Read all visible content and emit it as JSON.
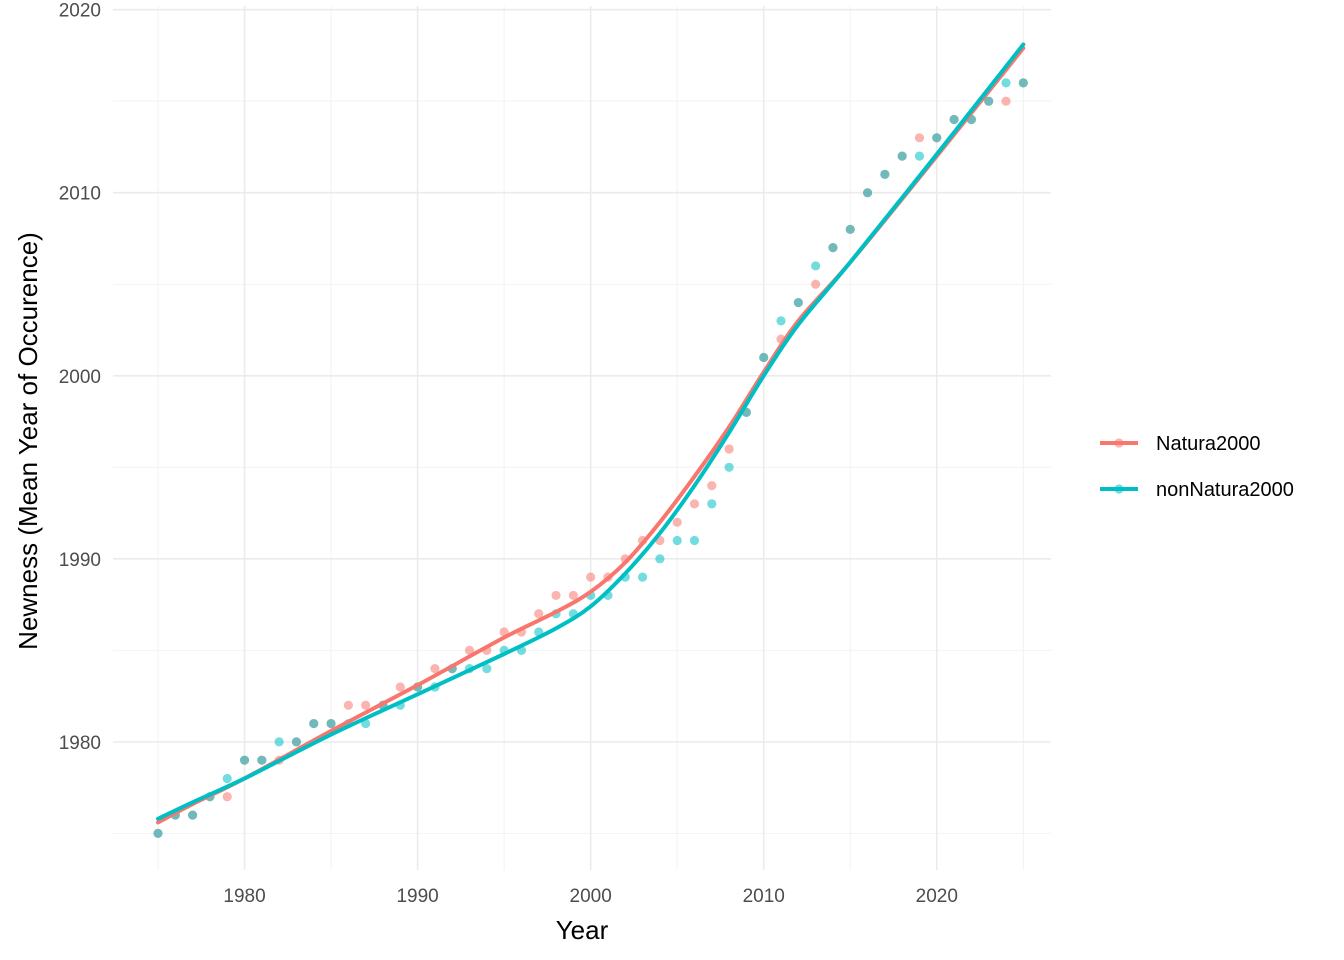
{
  "chart_data": {
    "type": "scatter",
    "xlabel": "Year",
    "ylabel": "Newness (Mean Year of Occurence)",
    "xlim": [
      1972.4,
      2026.6
    ],
    "ylim": [
      1973.0,
      2020.2
    ],
    "x_ticks": [
      1980,
      1990,
      2000,
      2010,
      2020
    ],
    "y_ticks": [
      1980,
      1990,
      2000,
      2010,
      2020
    ],
    "grid": true,
    "legend_position": "right",
    "series": [
      {
        "name": "Natura2000",
        "color": "#F8766D",
        "points": [
          [
            1975,
            1975
          ],
          [
            1976,
            1976
          ],
          [
            1977,
            1976
          ],
          [
            1978,
            1977
          ],
          [
            1979,
            1977
          ],
          [
            1980,
            1979
          ],
          [
            1981,
            1979
          ],
          [
            1982,
            1979
          ],
          [
            1983,
            1980
          ],
          [
            1984,
            1981
          ],
          [
            1985,
            1981
          ],
          [
            1986,
            1982
          ],
          [
            1987,
            1982
          ],
          [
            1988,
            1982
          ],
          [
            1989,
            1983
          ],
          [
            1990,
            1983
          ],
          [
            1991,
            1984
          ],
          [
            1992,
            1984
          ],
          [
            1993,
            1985
          ],
          [
            1994,
            1985
          ],
          [
            1995,
            1986
          ],
          [
            1996,
            1986
          ],
          [
            1997,
            1987
          ],
          [
            1998,
            1988
          ],
          [
            1999,
            1988
          ],
          [
            2000,
            1989
          ],
          [
            2001,
            1989
          ],
          [
            2002,
            1990
          ],
          [
            2003,
            1991
          ],
          [
            2004,
            1991
          ],
          [
            2005,
            1992
          ],
          [
            2006,
            1993
          ],
          [
            2007,
            1994
          ],
          [
            2008,
            1996
          ],
          [
            2009,
            1998
          ],
          [
            2010,
            2001
          ],
          [
            2011,
            2002
          ],
          [
            2012,
            2004
          ],
          [
            2013,
            2005
          ],
          [
            2014,
            2007
          ],
          [
            2015,
            2008
          ],
          [
            2016,
            2010
          ],
          [
            2017,
            2011
          ],
          [
            2018,
            2012
          ],
          [
            2019,
            2013
          ],
          [
            2020,
            2013
          ],
          [
            2021,
            2014
          ],
          [
            2022,
            2014
          ],
          [
            2023,
            2015
          ],
          [
            2024,
            2015
          ],
          [
            2025,
            2016
          ]
        ],
        "smooth": [
          [
            1975,
            1975.6
          ],
          [
            1977,
            1976.6
          ],
          [
            1980,
            1978.0
          ],
          [
            1985,
            1980.6
          ],
          [
            1990,
            1983.1
          ],
          [
            1995,
            1985.7
          ],
          [
            1998,
            1987.1
          ],
          [
            2000,
            1988.2
          ],
          [
            2002,
            1989.8
          ],
          [
            2004,
            1992.0
          ],
          [
            2006,
            1994.5
          ],
          [
            2008,
            1997.2
          ],
          [
            2010,
            2000.2
          ],
          [
            2012,
            2003.0
          ],
          [
            2015,
            2006.2
          ],
          [
            2020,
            2012.0
          ],
          [
            2025,
            2017.9
          ]
        ]
      },
      {
        "name": "nonNatura2000",
        "color": "#00BFC4",
        "points": [
          [
            1975,
            1975
          ],
          [
            1976,
            1976
          ],
          [
            1977,
            1976
          ],
          [
            1978,
            1977
          ],
          [
            1979,
            1978
          ],
          [
            1980,
            1979
          ],
          [
            1981,
            1979
          ],
          [
            1982,
            1980
          ],
          [
            1983,
            1980
          ],
          [
            1984,
            1981
          ],
          [
            1985,
            1981
          ],
          [
            1986,
            1981
          ],
          [
            1987,
            1981
          ],
          [
            1988,
            1982
          ],
          [
            1989,
            1982
          ],
          [
            1990,
            1983
          ],
          [
            1991,
            1983
          ],
          [
            1992,
            1984
          ],
          [
            1993,
            1984
          ],
          [
            1994,
            1984
          ],
          [
            1995,
            1985
          ],
          [
            1996,
            1985
          ],
          [
            1997,
            1986
          ],
          [
            1998,
            1987
          ],
          [
            1999,
            1987
          ],
          [
            2000,
            1988
          ],
          [
            2001,
            1988
          ],
          [
            2002,
            1989
          ],
          [
            2003,
            1989
          ],
          [
            2004,
            1990
          ],
          [
            2005,
            1991
          ],
          [
            2006,
            1991
          ],
          [
            2007,
            1993
          ],
          [
            2008,
            1995
          ],
          [
            2009,
            1998
          ],
          [
            2010,
            2001
          ],
          [
            2011,
            2003
          ],
          [
            2012,
            2004
          ],
          [
            2013,
            2006
          ],
          [
            2014,
            2007
          ],
          [
            2015,
            2008
          ],
          [
            2016,
            2010
          ],
          [
            2017,
            2011
          ],
          [
            2018,
            2012
          ],
          [
            2019,
            2012
          ],
          [
            2020,
            2013
          ],
          [
            2021,
            2014
          ],
          [
            2022,
            2014
          ],
          [
            2023,
            2015
          ],
          [
            2024,
            2016
          ],
          [
            2025,
            2016
          ]
        ],
        "smooth": [
          [
            1975,
            1975.8
          ],
          [
            1977,
            1976.7
          ],
          [
            1980,
            1978.0
          ],
          [
            1985,
            1980.4
          ],
          [
            1990,
            1982.6
          ],
          [
            1995,
            1984.8
          ],
          [
            1998,
            1986.2
          ],
          [
            2000,
            1987.4
          ],
          [
            2002,
            1989.2
          ],
          [
            2004,
            1991.4
          ],
          [
            2006,
            1994.0
          ],
          [
            2008,
            1996.9
          ],
          [
            2010,
            2000.0
          ],
          [
            2012,
            2002.8
          ],
          [
            2015,
            2006.2
          ],
          [
            2020,
            2012.1
          ],
          [
            2025,
            2018.1
          ]
        ]
      }
    ]
  }
}
